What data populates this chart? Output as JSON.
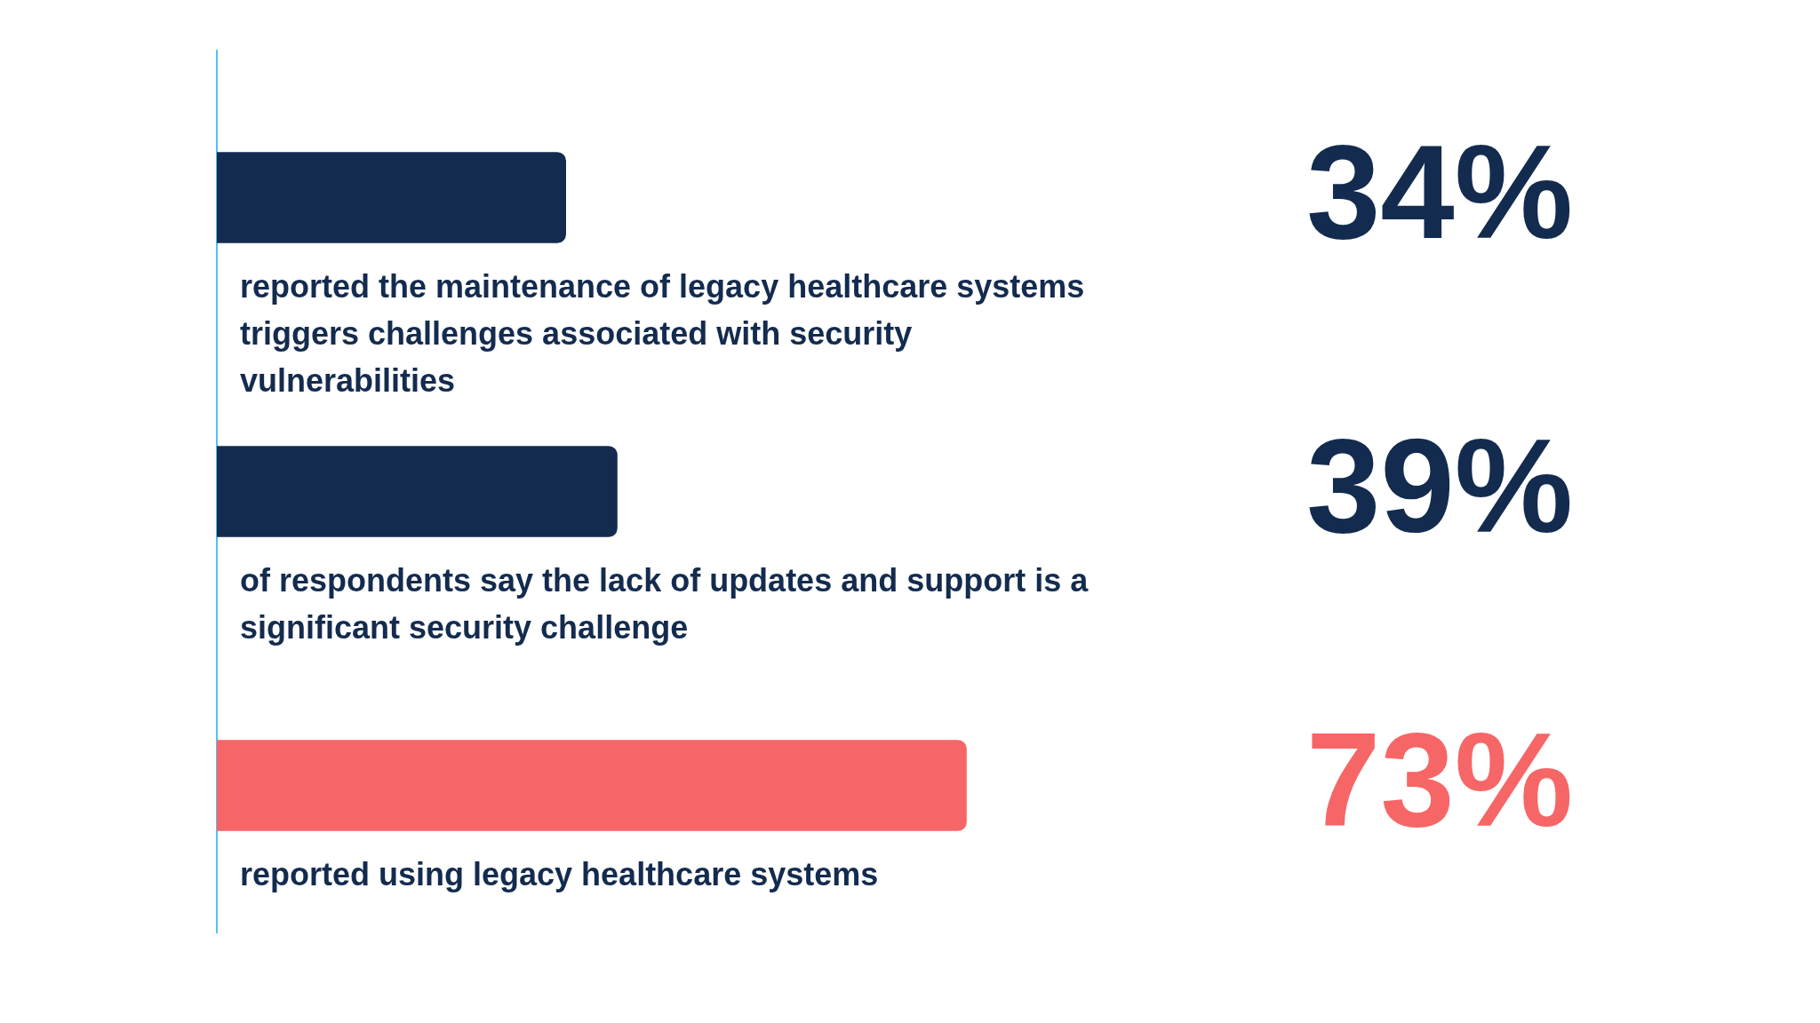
{
  "chart_data": {
    "type": "bar",
    "orientation": "horizontal",
    "categories": [
      "reported the maintenance of legacy healthcare systems triggers challenges associated with security vulnerabilities",
      "of respondents say the lack of updates and support is a significant security challenge",
      "reported using legacy healthcare systems"
    ],
    "values": [
      34,
      39,
      73
    ],
    "colors": [
      "#132b4e",
      "#132b4e",
      "#f66666"
    ],
    "value_labels": [
      "34%",
      "39%",
      "73%"
    ]
  }
}
